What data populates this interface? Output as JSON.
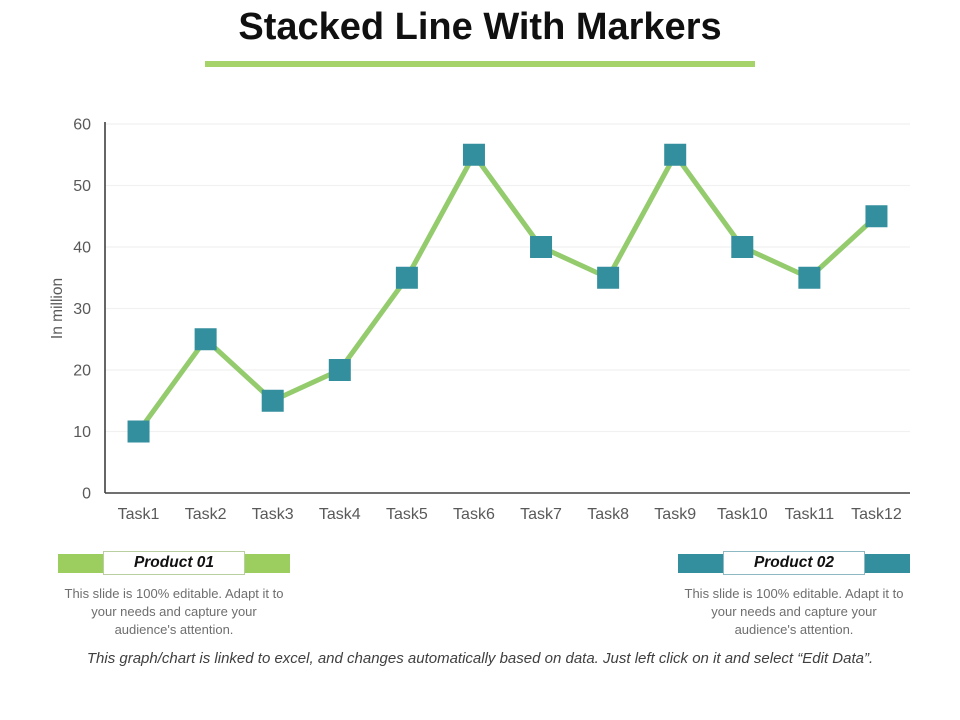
{
  "title": "Stacked Line With Markers",
  "accent": {
    "title_underline_color": "#A6D46A"
  },
  "chart_data": {
    "type": "line",
    "categories": [
      "Task1",
      "Task2",
      "Task3",
      "Task4",
      "Task5",
      "Task6",
      "Task7",
      "Task8",
      "Task9",
      "Task10",
      "Task11",
      "Task12"
    ],
    "series": [
      {
        "name": "Product 01",
        "values": [
          10,
          25,
          15,
          20,
          35,
          55,
          40,
          35,
          55,
          40,
          35,
          45
        ]
      }
    ],
    "title": "",
    "xlabel": "",
    "ylabel": "In million",
    "ylim": [
      0,
      60
    ],
    "ytick_step": 10,
    "grid": true,
    "legend_position": "none",
    "marker_shape": "square",
    "line_color": "#94CB6D",
    "marker_color": "#338E9D",
    "grid_color": "#F1F1F1",
    "axis_color": "#404040",
    "tick_color": "#595959"
  },
  "legend": {
    "items": [
      {
        "label": "Product 01",
        "bar_color": "#9BCE5F",
        "box_border_color": "#B9CFA0",
        "caption": "This slide is 100% editable. Adapt it to your needs and capture your audience's attention."
      },
      {
        "label": "Product 02",
        "bar_color": "#338E9D",
        "box_border_color": "#8FB9C2",
        "caption": "This slide is 100% editable. Adapt it to your needs and capture your audience's attention."
      }
    ]
  },
  "footer": "This graph/chart is linked to excel, and changes automatically based on data.  Just left click on it and select “Edit Data”."
}
